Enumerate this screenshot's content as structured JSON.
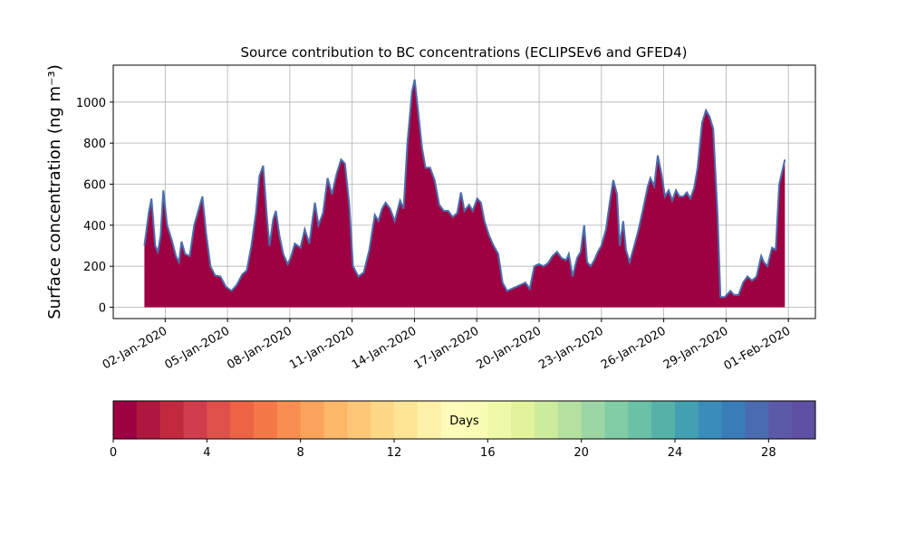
{
  "chart_data": {
    "type": "area",
    "title": "Source contribution to BC concentrations (ECLIPSEv6 and GFED4)",
    "ylabel": "Surface concentration (ng m⁻³)",
    "color": "#9e0142",
    "line_color": "#4a6fae",
    "grid": true,
    "xlim": [
      -0.5,
      33.3
    ],
    "xticks": [
      {
        "value": 2,
        "label": "02-Jan-2020"
      },
      {
        "value": 5,
        "label": "05-Jan-2020"
      },
      {
        "value": 8,
        "label": "08-Jan-2020"
      },
      {
        "value": 11,
        "label": "11-Jan-2020"
      },
      {
        "value": 14,
        "label": "14-Jan-2020"
      },
      {
        "value": 17,
        "label": "17-Jan-2020"
      },
      {
        "value": 20,
        "label": "20-Jan-2020"
      },
      {
        "value": 23,
        "label": "23-Jan-2020"
      },
      {
        "value": 26,
        "label": "26-Jan-2020"
      },
      {
        "value": 29,
        "label": "29-Jan-2020"
      },
      {
        "value": 32,
        "label": "01-Feb-2020"
      }
    ],
    "ylim": [
      -55,
      1180
    ],
    "yticks": [
      0,
      200,
      400,
      600,
      800,
      1000
    ],
    "x": [
      1.0,
      1.21,
      1.34,
      1.52,
      1.65,
      1.78,
      1.91,
      2.09,
      2.31,
      2.52,
      2.66,
      2.79,
      2.96,
      3.18,
      3.4,
      3.62,
      3.79,
      3.97,
      4.18,
      4.4,
      4.66,
      4.92,
      5.19,
      5.45,
      5.71,
      5.93,
      6.15,
      6.37,
      6.54,
      6.72,
      6.89,
      7.02,
      7.2,
      7.33,
      7.5,
      7.68,
      7.9,
      8.07,
      8.24,
      8.51,
      8.72,
      8.94,
      9.21,
      9.38,
      9.6,
      9.82,
      10.03,
      10.25,
      10.47,
      10.65,
      10.86,
      11.04,
      11.3,
      11.56,
      11.83,
      12.09,
      12.26,
      12.44,
      12.61,
      12.83,
      13.05,
      13.31,
      13.48,
      13.66,
      13.88,
      14.01,
      14.18,
      14.36,
      14.53,
      14.75,
      14.97,
      15.19,
      15.41,
      15.62,
      15.84,
      16.06,
      16.24,
      16.41,
      16.63,
      16.8,
      17.02,
      17.2,
      17.37,
      17.59,
      17.81,
      18.03,
      18.24,
      18.46,
      18.68,
      18.9,
      19.12,
      19.34,
      19.55,
      19.77,
      19.99,
      20.21,
      20.43,
      20.65,
      20.86,
      21.08,
      21.3,
      21.43,
      21.61,
      21.83,
      22.0,
      22.17,
      22.31,
      22.48,
      22.66,
      22.83,
      23.0,
      23.22,
      23.4,
      23.57,
      23.75,
      23.88,
      24.05,
      24.18,
      24.36,
      24.58,
      24.79,
      25.01,
      25.23,
      25.36,
      25.54,
      25.71,
      25.89,
      26.06,
      26.24,
      26.41,
      26.59,
      26.76,
      26.94,
      27.11,
      27.28,
      27.46,
      27.63,
      27.85,
      28.03,
      28.2,
      28.38,
      28.59,
      28.73,
      28.94,
      29.21,
      29.38,
      29.6,
      29.82,
      30.03,
      30.25,
      30.47,
      30.69,
      30.82,
      30.99,
      31.21,
      31.39,
      31.56,
      31.83
    ],
    "values": [
      300,
      460,
      530,
      300,
      270,
      350,
      570,
      400,
      330,
      250,
      220,
      320,
      260,
      250,
      400,
      480,
      540,
      360,
      200,
      155,
      150,
      100,
      80,
      110,
      160,
      180,
      300,
      460,
      640,
      690,
      450,
      300,
      430,
      470,
      350,
      260,
      210,
      250,
      310,
      290,
      380,
      310,
      510,
      400,
      460,
      630,
      550,
      650,
      720,
      700,
      500,
      200,
      150,
      170,
      280,
      450,
      420,
      480,
      510,
      480,
      420,
      520,
      480,
      800,
      1050,
      1110,
      950,
      780,
      680,
      680,
      620,
      500,
      470,
      470,
      440,
      460,
      560,
      470,
      500,
      470,
      530,
      510,
      420,
      350,
      300,
      260,
      120,
      80,
      90,
      100,
      110,
      120,
      90,
      200,
      210,
      200,
      215,
      250,
      270,
      240,
      230,
      260,
      150,
      240,
      270,
      400,
      220,
      200,
      230,
      270,
      300,
      380,
      510,
      620,
      550,
      300,
      420,
      280,
      220,
      300,
      380,
      480,
      590,
      630,
      590,
      740,
      650,
      540,
      570,
      520,
      570,
      540,
      540,
      560,
      530,
      580,
      680,
      900,
      960,
      930,
      870,
      450,
      50,
      50,
      80,
      60,
      60,
      120,
      150,
      130,
      150,
      250,
      220,
      200,
      290,
      280,
      600,
      720
    ],
    "colorbar": {
      "label": "Days",
      "lim": [
        0,
        30
      ],
      "ticks": [
        0,
        4,
        8,
        12,
        16,
        20,
        24,
        28
      ],
      "colors": [
        "#9e0142",
        "#b0173f",
        "#c2293f",
        "#d23c4f",
        "#e0504a",
        "#ec6445",
        "#f57848",
        "#f88e52",
        "#fba35c",
        "#fdb768",
        "#fec777",
        "#fed787",
        "#fee596",
        "#fff1a8",
        "#fffbb8",
        "#f9fcb5",
        "#f0f9a8",
        "#e2f39c",
        "#cdeb9d",
        "#b5e1a0",
        "#9cd6a4",
        "#82cca5",
        "#6bc1a5",
        "#56b1a9",
        "#439fb2",
        "#3a8dba",
        "#3a7cb8",
        "#4b6bb0",
        "#5c59a8",
        "#5e4fa2"
      ]
    }
  }
}
